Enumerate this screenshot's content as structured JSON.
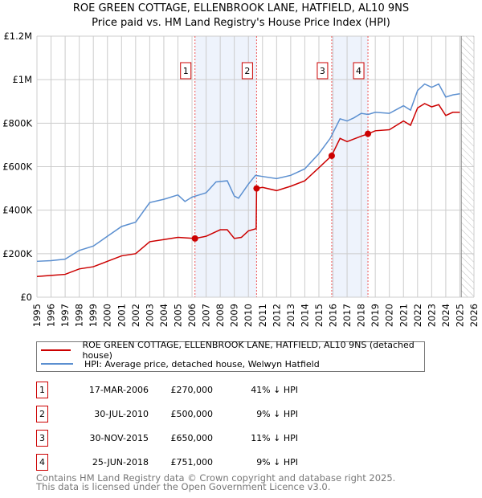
{
  "chart_data": {
    "type": "line",
    "title": "ROE GREEN COTTAGE, ELLENBROOK LANE, HATFIELD, AL10 9NS",
    "subtitle": "Price paid vs. HM Land Registry's House Price Index (HPI)",
    "xlim": [
      1995,
      2026
    ],
    "ylim": [
      0,
      1200000
    ],
    "x_ticks": [
      "1995",
      "1996",
      "1997",
      "1998",
      "1999",
      "2000",
      "2001",
      "2002",
      "2003",
      "2004",
      "2005",
      "2006",
      "2007",
      "2008",
      "2009",
      "2010",
      "2011",
      "2012",
      "2013",
      "2014",
      "2015",
      "2016",
      "2017",
      "2018",
      "2019",
      "2020",
      "2021",
      "2022",
      "2023",
      "2024",
      "2025",
      "2026"
    ],
    "y_ticks": [
      {
        "v": 0,
        "label": "£0"
      },
      {
        "v": 200000,
        "label": "£200K"
      },
      {
        "v": 400000,
        "label": "£400K"
      },
      {
        "v": 600000,
        "label": "£600K"
      },
      {
        "v": 800000,
        "label": "£800K"
      },
      {
        "v": 1000000,
        "label": "£1M"
      },
      {
        "v": 1200000,
        "label": "£1.2M"
      }
    ],
    "grid": true,
    "series": [
      {
        "name": "ROE GREEN COTTAGE, ELLENBROOK LANE, HATFIELD, AL10 9NS (detached house)",
        "color": "#cc0000",
        "x": [
          1995,
          1996,
          1997,
          1998,
          1999,
          2000,
          2001,
          2002,
          2003,
          2004,
          2005,
          2006.2,
          2007,
          2008,
          2008.5,
          2009,
          2009.5,
          2010,
          2010.55,
          2010.58,
          2011,
          2012,
          2013,
          2014,
          2015,
          2015.9,
          2016.5,
          2017,
          2018,
          2018.5,
          2019,
          2020,
          2021,
          2021.5,
          2022,
          2022.5,
          2023,
          2023.5,
          2024,
          2024.5,
          2025
        ],
        "y": [
          95000,
          100000,
          105000,
          130000,
          140000,
          165000,
          190000,
          200000,
          255000,
          265000,
          275000,
          270000,
          280000,
          310000,
          310000,
          270000,
          275000,
          305000,
          315000,
          500000,
          505000,
          490000,
          510000,
          535000,
          595000,
          650000,
          730000,
          715000,
          740000,
          751000,
          765000,
          770000,
          810000,
          790000,
          870000,
          890000,
          875000,
          885000,
          835000,
          850000,
          850000
        ]
      },
      {
        "name": "HPI: Average price, detached house, Welwyn Hatfield",
        "color": "#5b8fd0",
        "x": [
          1995,
          1996,
          1997,
          1998,
          1999,
          2000,
          2001,
          2002,
          2003,
          2004,
          2005,
          2005.5,
          2006,
          2007,
          2007.7,
          2008.5,
          2009,
          2009.3,
          2010,
          2010.5,
          2011,
          2012,
          2013,
          2014,
          2015,
          2015.8,
          2016.5,
          2017,
          2017.5,
          2018,
          2018.5,
          2019,
          2020,
          2021,
          2021.5,
          2022,
          2022.5,
          2023,
          2023.5,
          2024,
          2024.5,
          2025
        ],
        "y": [
          165000,
          168000,
          175000,
          215000,
          235000,
          280000,
          325000,
          345000,
          435000,
          450000,
          470000,
          440000,
          460000,
          480000,
          530000,
          535000,
          465000,
          455000,
          520000,
          560000,
          555000,
          545000,
          560000,
          590000,
          660000,
          730000,
          820000,
          810000,
          825000,
          845000,
          840000,
          850000,
          845000,
          880000,
          860000,
          950000,
          980000,
          965000,
          980000,
          920000,
          930000,
          935000
        ]
      }
    ],
    "transactions": [
      {
        "n": "1",
        "x": 2006.21,
        "date": "17-MAR-2006",
        "price": "£270,000",
        "value": 270000,
        "hpi": "41% ↓ HPI"
      },
      {
        "n": "2",
        "x": 2010.58,
        "date": "30-JUL-2010",
        "price": "£500,000",
        "value": 500000,
        "hpi": "9% ↓ HPI"
      },
      {
        "n": "3",
        "x": 2015.91,
        "date": "30-NOV-2015",
        "price": "£650,000",
        "value": 650000,
        "hpi": "11% ↓ HPI"
      },
      {
        "n": "4",
        "x": 2018.48,
        "date": "25-JUN-2018",
        "price": "£751,000",
        "value": 751000,
        "hpi": "9% ↓ HPI"
      }
    ],
    "shaded": [
      [
        2006.21,
        2010.58
      ],
      [
        2015.91,
        2018.48
      ]
    ],
    "forecast_from": 2025.1
  },
  "footer": [
    "Contains HM Land Registry data © Crown copyright and database right 2025.",
    "This data is licensed under the Open Government Licence v3.0."
  ]
}
